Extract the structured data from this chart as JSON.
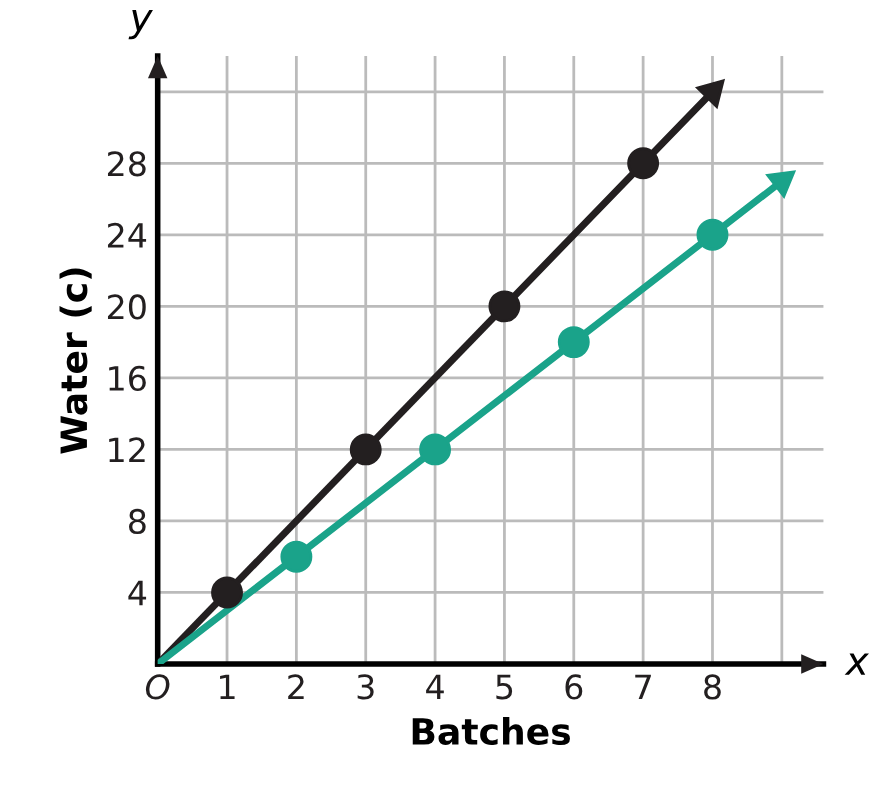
{
  "chart_data": {
    "type": "line",
    "xlabel": "Batches",
    "ylabel": "Water (c)",
    "xlim": [
      0,
      9.6
    ],
    "ylim": [
      0,
      34
    ],
    "xticks": [
      {
        "value": 0,
        "label": "O"
      },
      1,
      2,
      3,
      4,
      5,
      6,
      7,
      8,
      {
        "value": 9,
        "label": null
      }
    ],
    "yticks": [
      {
        "value": 0,
        "label": null
      },
      4,
      8,
      12,
      16,
      20,
      24,
      28,
      {
        "value": 32,
        "label": null
      }
    ],
    "grid": true,
    "annotations": [
      "x",
      "y"
    ],
    "series": [
      {
        "color": "#231f20",
        "x": [
          0,
          8
        ],
        "values": [
          0,
          32
        ]
      },
      {
        "color": "#1aa38a",
        "x": [
          0,
          9
        ],
        "values": [
          0,
          27
        ]
      },
      {
        "type": "scatter",
        "color": "#231f20",
        "x": [
          1,
          3,
          5,
          7
        ],
        "values": [
          4,
          12,
          20,
          28
        ],
        "marker": "circle"
      },
      {
        "type": "scatter",
        "color": "#1aa38a",
        "x": [
          2,
          4,
          6,
          8
        ],
        "values": [
          6,
          12,
          18,
          24
        ],
        "marker": "circle"
      }
    ]
  }
}
